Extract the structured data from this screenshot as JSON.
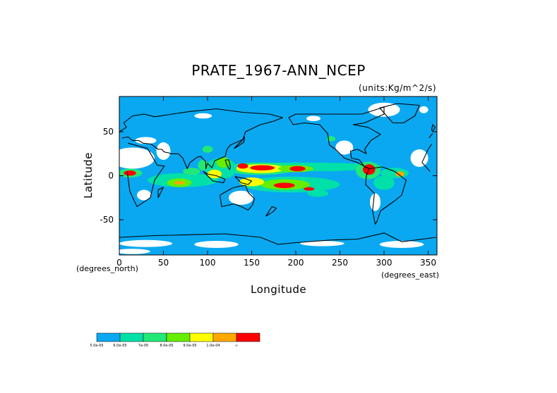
{
  "chart_data": {
    "type": "heatmap",
    "title": "PRATE_1967-ANN_NCEP",
    "units": "(units:Kg/m^2/s)",
    "xlabel": "Longitude",
    "ylabel": "Latitude",
    "x_unit_label": "(degrees_east)",
    "y_unit_label": "(degrees_north)",
    "xlim": [
      0,
      360
    ],
    "ylim": [
      -90,
      90
    ],
    "x_ticks": [
      "0",
      "50",
      "100",
      "150",
      "200",
      "250",
      "300",
      "350"
    ],
    "y_ticks": [
      "50",
      "0",
      "-50"
    ],
    "x_tick_values": [
      0,
      50,
      100,
      150,
      200,
      250,
      300,
      350
    ],
    "y_tick_values": [
      50,
      0,
      -50
    ],
    "colorbar": {
      "colors": [
        "#0aa8f0",
        "#00e0a8",
        "#22e878",
        "#66ee00",
        "#ffff00",
        "#ffa800",
        "#ff0000"
      ],
      "labels": [
        "5.0e-05",
        "6.0e-05",
        "7e-05",
        "8.0e-05",
        "9.0e-05",
        "1.0e-04",
        "∞"
      ]
    },
    "background_color": "#0aa8f0",
    "missing_color": "#ffffff",
    "blobs": [
      {
        "lon": 205,
        "lat": 10,
        "rlon": 95,
        "rlat": 5,
        "level": 1
      },
      {
        "lon": 160,
        "lat": 8,
        "rlon": 40,
        "rlat": 7,
        "level": 2
      },
      {
        "lon": 160,
        "lat": 8,
        "rlon": 28,
        "rlat": 5,
        "level": 4
      },
      {
        "lon": 162,
        "lat": 9,
        "rlon": 14,
        "rlat": 3,
        "level": 6
      },
      {
        "lon": 140,
        "lat": 11,
        "rlon": 6,
        "rlat": 3,
        "level": 6
      },
      {
        "lon": 200,
        "lat": 8,
        "rlon": 20,
        "rlat": 4,
        "level": 3
      },
      {
        "lon": 202,
        "lat": 8,
        "rlon": 9,
        "rlat": 3,
        "level": 6
      },
      {
        "lon": 195,
        "lat": -10,
        "rlon": 55,
        "rlat": 9,
        "level": 1
      },
      {
        "lon": 188,
        "lat": -10,
        "rlon": 28,
        "rlat": 6,
        "level": 3
      },
      {
        "lon": 187,
        "lat": -11,
        "rlon": 12,
        "rlat": 3,
        "level": 6
      },
      {
        "lon": 150,
        "lat": -7,
        "rlon": 14,
        "rlat": 5,
        "level": 4
      },
      {
        "lon": 72,
        "lat": -5,
        "rlon": 40,
        "rlat": 8,
        "level": 1
      },
      {
        "lon": 68,
        "lat": -8,
        "rlon": 14,
        "rlat": 5,
        "level": 3
      },
      {
        "lon": 68,
        "lat": -8,
        "rlon": 6,
        "rlat": 2,
        "level": 5
      },
      {
        "lon": 82,
        "lat": 5,
        "rlon": 10,
        "rlat": 4,
        "level": 2
      },
      {
        "lon": 115,
        "lat": 8,
        "rlon": 18,
        "rlat": 12,
        "level": 1
      },
      {
        "lon": 118,
        "lat": 15,
        "rlon": 8,
        "rlat": 6,
        "level": 3
      },
      {
        "lon": 108,
        "lat": 2,
        "rlon": 8,
        "rlat": 5,
        "level": 4
      },
      {
        "lon": 95,
        "lat": 12,
        "rlon": 6,
        "rlat": 6,
        "level": 2
      },
      {
        "lon": 12,
        "lat": 3,
        "rlon": 14,
        "rlat": 5,
        "level": 2
      },
      {
        "lon": 12,
        "lat": 3,
        "rlon": 7,
        "rlat": 3,
        "level": 6
      },
      {
        "lon": 282,
        "lat": 6,
        "rlon": 14,
        "rlat": 10,
        "level": 2
      },
      {
        "lon": 283,
        "lat": 7,
        "rlon": 7,
        "rlat": 6,
        "level": 6
      },
      {
        "lon": 312,
        "lat": 3,
        "rlon": 16,
        "rlat": 6,
        "level": 1
      },
      {
        "lon": 300,
        "lat": -8,
        "rlon": 12,
        "rlat": 8,
        "level": 1
      },
      {
        "lon": 318,
        "lat": 2,
        "rlon": 5,
        "rlat": 3,
        "level": 5
      },
      {
        "lon": 225,
        "lat": -20,
        "rlon": 12,
        "rlat": 4,
        "level": 1
      },
      {
        "lon": 215,
        "lat": -15,
        "rlon": 6,
        "rlat": 2,
        "level": 6
      },
      {
        "lon": 240,
        "lat": 8,
        "rlon": 18,
        "rlat": 3,
        "level": 1
      },
      {
        "lon": 100,
        "lat": 30,
        "rlon": 6,
        "rlat": 4,
        "level": 2
      },
      {
        "lon": 240,
        "lat": 42,
        "rlon": 5,
        "rlat": 3,
        "level": 2
      }
    ],
    "missing_regions": [
      {
        "lon": 15,
        "lat": 20,
        "rlon": 25,
        "rlat": 12
      },
      {
        "lon": 30,
        "lat": 40,
        "rlon": 12,
        "rlat": 4
      },
      {
        "lon": 50,
        "lat": 28,
        "rlon": 8,
        "rlat": 10
      },
      {
        "lon": 28,
        "lat": -22,
        "rlon": 8,
        "rlat": 6
      },
      {
        "lon": 138,
        "lat": -25,
        "rlon": 14,
        "rlat": 8
      },
      {
        "lon": 255,
        "lat": 32,
        "rlon": 10,
        "rlat": 8
      },
      {
        "lon": 300,
        "lat": 75,
        "rlon": 18,
        "rlat": 8
      },
      {
        "lon": 340,
        "lat": 20,
        "rlon": 10,
        "rlat": 10
      },
      {
        "lon": 290,
        "lat": -30,
        "rlon": 6,
        "rlat": 10
      },
      {
        "lon": 30,
        "lat": -77,
        "rlon": 30,
        "rlat": 4
      },
      {
        "lon": 110,
        "lat": -78,
        "rlon": 25,
        "rlat": 4
      },
      {
        "lon": 230,
        "lat": -77,
        "rlon": 25,
        "rlat": 3
      },
      {
        "lon": 320,
        "lat": -78,
        "rlon": 25,
        "rlat": 4
      },
      {
        "lon": 15,
        "lat": -86,
        "rlon": 20,
        "rlat": 3
      },
      {
        "lon": 95,
        "lat": 68,
        "rlon": 10,
        "rlat": 3
      },
      {
        "lon": 345,
        "lat": 75,
        "rlon": 5,
        "rlat": 4
      },
      {
        "lon": 220,
        "lat": 65,
        "rlon": 8,
        "rlat": 3
      }
    ],
    "coastlines": [
      [
        [
          350,
          36
        ],
        [
          10,
          37
        ],
        [
          32,
          31
        ],
        [
          43,
          12
        ],
        [
          51,
          11
        ],
        [
          40,
          -5
        ],
        [
          35,
          -25
        ],
        [
          20,
          -35
        ],
        [
          12,
          -18
        ],
        [
          9,
          4
        ],
        [
          -8,
          5
        ],
        [
          -17,
          15
        ],
        [
          -10,
          30
        ],
        [
          -6,
          36
        ]
      ],
      [
        [
          28,
          70
        ],
        [
          40,
          67
        ],
        [
          60,
          70
        ],
        [
          80,
          73
        ],
        [
          110,
          76
        ],
        [
          140,
          72
        ],
        [
          170,
          70
        ],
        [
          185,
          66
        ],
        [
          175,
          62
        ],
        [
          160,
          58
        ],
        [
          143,
          50
        ],
        [
          140,
          41
        ],
        [
          126,
          35
        ],
        [
          122,
          30
        ],
        [
          120,
          22
        ],
        [
          108,
          17
        ],
        [
          105,
          9
        ],
        [
          100,
          14
        ],
        [
          98,
          8
        ],
        [
          98,
          16
        ],
        [
          92,
          22
        ],
        [
          88,
          21
        ],
        [
          80,
          15
        ],
        [
          77,
          8
        ],
        [
          72,
          20
        ],
        [
          67,
          25
        ],
        [
          58,
          25
        ],
        [
          56,
          26
        ],
        [
          51,
          27
        ],
        [
          48,
          30
        ],
        [
          44,
          30
        ],
        [
          36,
          36
        ],
        [
          27,
          37
        ],
        [
          22,
          40
        ],
        [
          15,
          40
        ],
        [
          10,
          44
        ],
        [
          3,
          43
        ],
        [
          -9,
          43
        ],
        [
          -5,
          48
        ],
        [
          0,
          50
        ],
        [
          8,
          55
        ],
        [
          5,
          60
        ],
        [
          15,
          68
        ],
        [
          28,
          70
        ]
      ],
      [
        [
          192,
          66
        ],
        [
          200,
          70
        ],
        [
          225,
          70
        ],
        [
          250,
          70
        ],
        [
          275,
          70
        ],
        [
          300,
          78
        ],
        [
          300,
          70
        ],
        [
          278,
          60
        ],
        [
          265,
          58
        ],
        [
          282,
          55
        ],
        [
          296,
          47
        ],
        [
          285,
          40
        ],
        [
          278,
          30
        ],
        [
          280,
          25
        ],
        [
          270,
          30
        ],
        [
          262,
          28
        ],
        [
          263,
          20
        ],
        [
          272,
          18
        ],
        [
          278,
          10
        ],
        [
          283,
          8
        ],
        [
          270,
          15
        ],
        [
          255,
          20
        ],
        [
          245,
          30
        ],
        [
          238,
          35
        ],
        [
          236,
          48
        ],
        [
          227,
          58
        ],
        [
          210,
          60
        ],
        [
          197,
          58
        ],
        [
          192,
          66
        ]
      ],
      [
        [
          283,
          8
        ],
        [
          298,
          10
        ],
        [
          312,
          5
        ],
        [
          325,
          -5
        ],
        [
          320,
          -22
        ],
        [
          310,
          -30
        ],
        [
          296,
          -40
        ],
        [
          292,
          -52
        ],
        [
          290,
          -55
        ],
        [
          287,
          -40
        ],
        [
          289,
          -20
        ],
        [
          279,
          -10
        ],
        [
          280,
          0
        ],
        [
          283,
          8
        ]
      ],
      [
        [
          114,
          -22
        ],
        [
          128,
          -14
        ],
        [
          136,
          -12
        ],
        [
          143,
          -11
        ],
        [
          146,
          -19
        ],
        [
          153,
          -26
        ],
        [
          151,
          -33
        ],
        [
          146,
          -39
        ],
        [
          138,
          -35
        ],
        [
          130,
          -32
        ],
        [
          116,
          -35
        ],
        [
          114,
          -22
        ]
      ],
      [
        [
          310,
          60
        ],
        [
          322,
          60
        ],
        [
          335,
          68
        ],
        [
          340,
          80
        ],
        [
          315,
          82
        ],
        [
          295,
          77
        ],
        [
          310,
          60
        ]
      ],
      [
        [
          95,
          5
        ],
        [
          106,
          -6
        ],
        [
          118,
          -8
        ],
        [
          120,
          -4
        ],
        [
          110,
          0
        ],
        [
          100,
          2
        ],
        [
          95,
          5
        ]
      ],
      [
        [
          131,
          -1
        ],
        [
          142,
          -3
        ],
        [
          150,
          -6
        ],
        [
          146,
          -10
        ],
        [
          138,
          -8
        ],
        [
          131,
          -1
        ]
      ],
      [
        [
          130,
          31
        ],
        [
          135,
          34
        ],
        [
          141,
          38
        ],
        [
          142,
          44
        ],
        [
          140,
          41
        ],
        [
          132,
          33
        ],
        [
          130,
          31
        ]
      ],
      [
        [
          120,
          18
        ],
        [
          122,
          12
        ],
        [
          125,
          7
        ],
        [
          126,
          10
        ],
        [
          124,
          18
        ],
        [
          120,
          18
        ]
      ],
      [
        [
          0,
          -70
        ],
        [
          40,
          -68
        ],
        [
          80,
          -67
        ],
        [
          120,
          -66
        ],
        [
          160,
          -70
        ],
        [
          180,
          -78
        ],
        [
          200,
          -76
        ],
        [
          240,
          -73
        ],
        [
          270,
          -72
        ],
        [
          300,
          -65
        ],
        [
          320,
          -75
        ],
        [
          359,
          -70
        ]
      ],
      [
        [
          166,
          -46
        ],
        [
          174,
          -41
        ],
        [
          178,
          -37
        ],
        [
          173,
          -35
        ],
        [
          166,
          -46
        ]
      ],
      [
        [
          44,
          -25
        ],
        [
          49,
          -15
        ],
        [
          50,
          -13
        ],
        [
          44,
          -16
        ],
        [
          44,
          -25
        ]
      ],
      [
        [
          -5,
          50
        ],
        [
          -2,
          55
        ],
        [
          -5,
          58
        ],
        [
          -6,
          52
        ],
        [
          -5,
          50
        ]
      ]
    ]
  }
}
